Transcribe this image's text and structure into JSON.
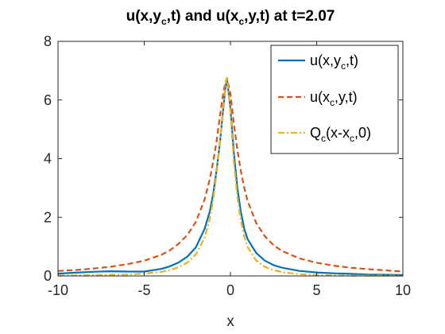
{
  "chart_data": {
    "type": "line",
    "title": {
      "pre": "u(x,y",
      "sub1": "c",
      "mid": ",t) and u(x",
      "sub2": "c",
      "post": ",y,t) at t=2.07"
    },
    "xlabel": "x",
    "ylabel": "",
    "xlim": [
      -10,
      10
    ],
    "ylim": [
      0,
      8
    ],
    "xticks": [
      -10,
      -5,
      0,
      5,
      10
    ],
    "yticks": [
      0,
      2,
      4,
      6,
      8
    ],
    "grid": false,
    "legend_position": "top-right",
    "series": [
      {
        "name": {
          "pre": "u(x,y",
          "sub": "c",
          "post": ",t)"
        },
        "color": "#0072BD",
        "style": "solid",
        "x": [
          -10,
          -9,
          -8,
          -7,
          -6,
          -5,
          -4,
          -3.5,
          -3,
          -2.5,
          -2,
          -1.5,
          -1.2,
          -1,
          -0.8,
          -0.6,
          -0.45,
          -0.3,
          -0.2,
          0,
          0.2,
          0.4,
          0.6,
          0.8,
          1,
          1.5,
          2,
          2.5,
          3,
          4,
          5,
          6,
          7,
          8,
          9,
          10
        ],
        "y": [
          0.08,
          0.11,
          0.14,
          0.16,
          0.15,
          0.15,
          0.24,
          0.33,
          0.46,
          0.66,
          0.98,
          1.6,
          2.2,
          2.8,
          3.6,
          4.6,
          5.5,
          6.4,
          6.7,
          5.7,
          4.2,
          3.0,
          2.2,
          1.6,
          1.25,
          0.78,
          0.52,
          0.37,
          0.28,
          0.17,
          0.12,
          0.09,
          0.07,
          0.05,
          0.04,
          0.03
        ]
      },
      {
        "name": {
          "pre": "u(x",
          "sub": "c",
          "post": ",y,t)"
        },
        "color": "#D95319",
        "style": "dashed",
        "x": [
          -10,
          -9,
          -8,
          -7,
          -6,
          -5,
          -4,
          -3.5,
          -3,
          -2.5,
          -2,
          -1.5,
          -1.2,
          -1,
          -0.8,
          -0.6,
          -0.45,
          -0.3,
          -0.2,
          0,
          0.2,
          0.4,
          0.6,
          0.8,
          1,
          1.5,
          2,
          2.5,
          3,
          4,
          5,
          6,
          7,
          8,
          9,
          10
        ],
        "y": [
          0.17,
          0.2,
          0.25,
          0.31,
          0.4,
          0.52,
          0.72,
          0.88,
          1.1,
          1.4,
          1.85,
          2.6,
          3.3,
          3.9,
          4.6,
          5.5,
          6.1,
          6.6,
          6.75,
          6.2,
          5.2,
          4.3,
          3.6,
          3.0,
          2.55,
          1.8,
          1.35,
          1.05,
          0.85,
          0.6,
          0.45,
          0.35,
          0.28,
          0.23,
          0.19,
          0.15
        ]
      },
      {
        "name": {
          "pre": "Q",
          "sub": "c",
          "post": "(x-x",
          "sub2": "c",
          "post2": ",0)"
        },
        "color": "#EDB120",
        "style": "dashdot",
        "x": [
          -10,
          -9,
          -8,
          -7,
          -6,
          -5,
          -4,
          -3.5,
          -3,
          -2.5,
          -2,
          -1.5,
          -1.2,
          -1,
          -0.8,
          -0.6,
          -0.45,
          -0.3,
          -0.2,
          0,
          0.2,
          0.4,
          0.6,
          0.8,
          1,
          1.5,
          2,
          2.5,
          3,
          4,
          5,
          6,
          7,
          8,
          9,
          10
        ],
        "y": [
          0.01,
          0.02,
          0.03,
          0.04,
          0.05,
          0.08,
          0.14,
          0.2,
          0.3,
          0.46,
          0.74,
          1.3,
          1.95,
          2.6,
          3.5,
          4.6,
          5.6,
          6.5,
          6.8,
          5.6,
          3.9,
          2.7,
          1.9,
          1.35,
          0.98,
          0.52,
          0.31,
          0.2,
          0.13,
          0.06,
          0.03,
          0.02,
          0.01,
          0.01,
          0.01,
          0.0
        ]
      }
    ]
  }
}
